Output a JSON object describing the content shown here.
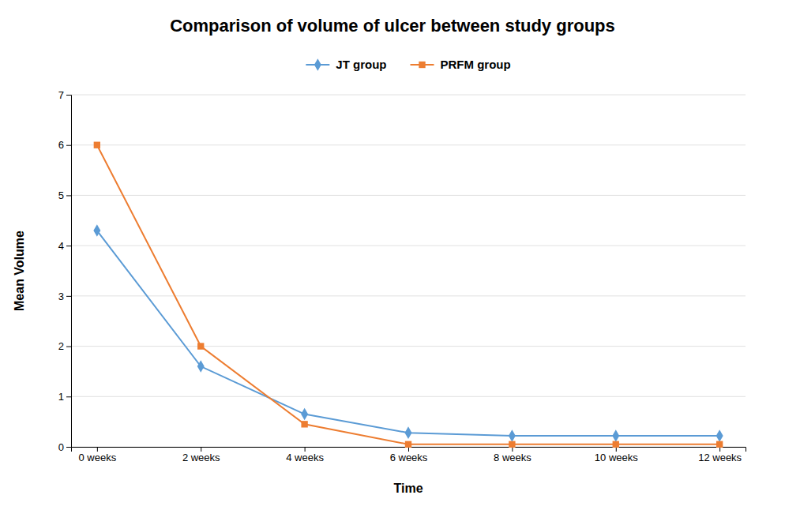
{
  "chart_data": {
    "type": "line",
    "title": "Comparison of volume of ulcer between study groups",
    "x_label": "Time",
    "y_label": "Mean Volume",
    "x": [
      0,
      2,
      4,
      6,
      8,
      10,
      12
    ],
    "series": [
      {
        "name": "JT group",
        "color": "#5B9BD5",
        "marker": "diamond",
        "values": [
          4.3,
          1.6,
          0.65,
          0.28,
          0.22,
          0.22,
          0.22
        ]
      },
      {
        "name": "PRFM group",
        "color": "#ED7D31",
        "marker": "square",
        "values": [
          6.0,
          2.0,
          0.45,
          0.05,
          0.05,
          0.05,
          0.05
        ]
      }
    ],
    "xlim": [
      -0.5,
      12.5
    ],
    "xticks": [
      {
        "value": 0,
        "label": "0 weeks"
      },
      {
        "value": 2,
        "label": "2 weeks"
      },
      {
        "value": 4,
        "label": "4 weeks"
      },
      {
        "value": 6,
        "label": "6 weeks"
      },
      {
        "value": 8,
        "label": "8 weeks"
      },
      {
        "value": 10,
        "label": "10 weeks"
      },
      {
        "value": 12,
        "label": "12 weeks"
      }
    ],
    "ylim": [
      0,
      7
    ],
    "yticks": [
      0,
      1,
      2,
      3,
      4,
      5,
      6,
      7
    ],
    "grid": "y",
    "legend": "top"
  }
}
